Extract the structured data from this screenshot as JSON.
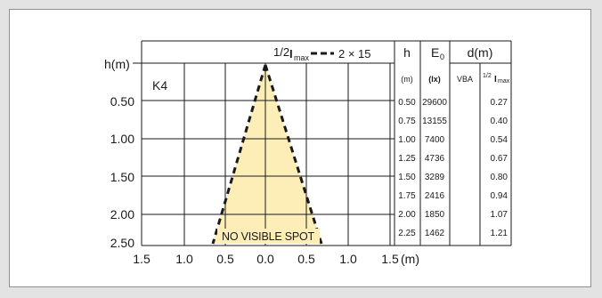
{
  "legend": {
    "label_prefix": "1/2",
    "label_main": "I",
    "label_sub": "max",
    "label_value": "2 × 15"
  },
  "diagram": {
    "lamp_code": "K4",
    "y_axis_label": "h(m)",
    "x_axis_unit": "(m)",
    "x_ticks": [
      "1.5",
      "1.0",
      "0.5",
      "0.0",
      "0.5",
      "1.0",
      "1.5"
    ],
    "y_ticks": [
      "0.50",
      "1.00",
      "1.50",
      "2.00",
      "2.50"
    ],
    "spot_note": "NO VISIBLE SPOT",
    "cone_color": "#fdedb7"
  },
  "table": {
    "col_h": "h",
    "col_e0_main": "E",
    "col_e0_sub": "0",
    "col_d": "d(m)",
    "unit_h": "(m)",
    "unit_e0": "(lx)",
    "sub_vba": "VBA",
    "sub_half_prefix": "1/2",
    "sub_half_main": "I",
    "sub_half_sub": "max",
    "rows": [
      {
        "h": "0.50",
        "e0": "29600",
        "vba": "",
        "half": "0.27"
      },
      {
        "h": "0.75",
        "e0": "13155",
        "vba": "",
        "half": "0.40"
      },
      {
        "h": "1.00",
        "e0": "7400",
        "vba": "",
        "half": "0.54"
      },
      {
        "h": "1.25",
        "e0": "4736",
        "vba": "",
        "half": "0.67"
      },
      {
        "h": "1.50",
        "e0": "3289",
        "vba": "",
        "half": "0.80"
      },
      {
        "h": "1.75",
        "e0": "2416",
        "vba": "",
        "half": "0.94"
      },
      {
        "h": "2.00",
        "e0": "1850",
        "vba": "",
        "half": "1.07"
      },
      {
        "h": "2.25",
        "e0": "1462",
        "vba": "",
        "half": "1.21"
      }
    ]
  }
}
